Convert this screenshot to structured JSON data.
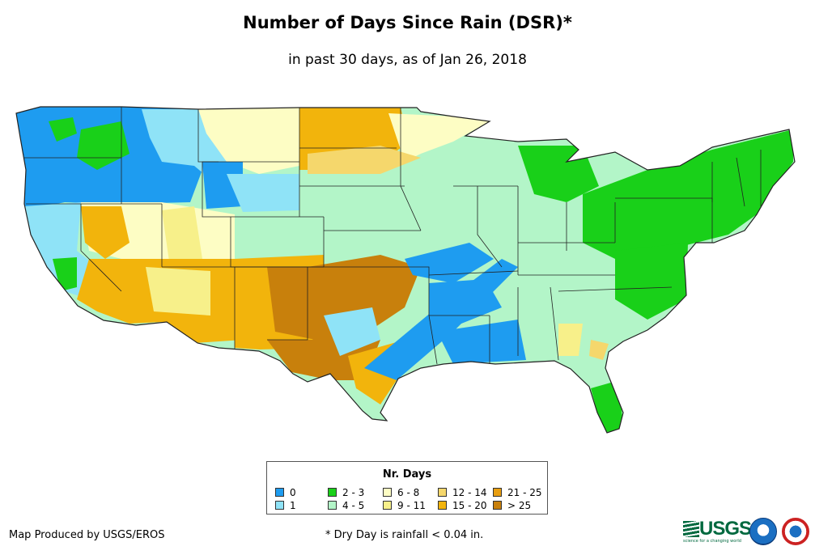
{
  "title": "Number of Days Since Rain (DSR)*",
  "subtitle": "in past 30 days, as of Jan 26, 2018",
  "legend": {
    "title": "Nr. Days",
    "items": [
      {
        "label": "0",
        "color": "#1e9cf0"
      },
      {
        "label": "1",
        "color": "#8fe3f7"
      },
      {
        "label": "2 - 3",
        "color": "#19d019"
      },
      {
        "label": "4 - 5",
        "color": "#b3f5c8"
      },
      {
        "label": "6 - 8",
        "color": "#fdfdc4"
      },
      {
        "label": "9 - 11",
        "color": "#f7f08a"
      },
      {
        "label": "12 - 14",
        "color": "#f5d76c"
      },
      {
        "label": "15 - 20",
        "color": "#f2b40c"
      },
      {
        "label": "21 - 25",
        "color": "#e89e10"
      },
      {
        "label": "> 25",
        "color": "#c8800c"
      }
    ]
  },
  "credit": "Map Produced by USGS/EROS",
  "footnote": "* Dry Day is rainfall < 0.04 in.",
  "logos": {
    "usgs": "USGS",
    "usgs_tagline": "science for a changing world",
    "noaa": "noaa-seal",
    "nws": "nws-seal"
  }
}
